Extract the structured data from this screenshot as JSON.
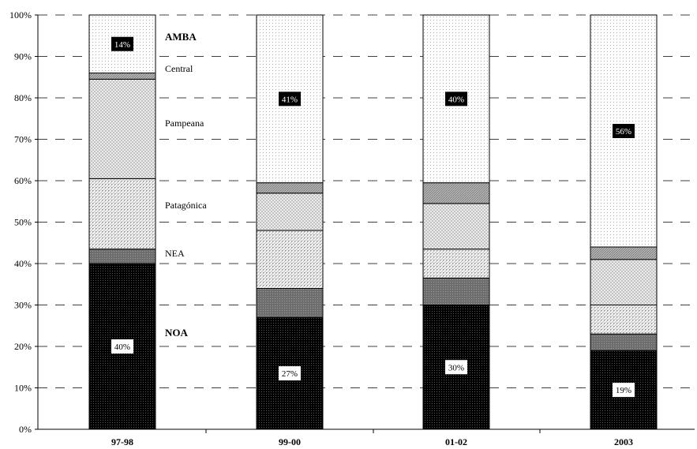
{
  "chart_data": {
    "type": "bar",
    "stacked": true,
    "percent": true,
    "categories": [
      "97-98",
      "99-00",
      "01-02",
      "2003"
    ],
    "ylim": [
      0,
      100
    ],
    "yticks": [
      "0%",
      "10%",
      "20%",
      "30%",
      "40%",
      "50%",
      "60%",
      "70%",
      "80%",
      "90%",
      "100%"
    ],
    "grid": "dashed horizontal",
    "series": [
      {
        "name": "NOA",
        "values": [
          40,
          27,
          30,
          19
        ],
        "pattern": "dense-black",
        "color": "#000000"
      },
      {
        "name": "NEA",
        "values": [
          3.5,
          7,
          6.5,
          4
        ],
        "pattern": "gray",
        "color": "#7a7a7a"
      },
      {
        "name": "Patagónica",
        "values": [
          17,
          14,
          7,
          7
        ],
        "pattern": "light-dots",
        "color": "#d8d8d8"
      },
      {
        "name": "Pampeana",
        "values": [
          24,
          9,
          11,
          11
        ],
        "pattern": "hatched",
        "color": "#c8c8c8"
      },
      {
        "name": "Central",
        "values": [
          1.5,
          2.5,
          5,
          3
        ],
        "pattern": "medium-gray",
        "color": "#a0a0a0"
      },
      {
        "name": "AMBA",
        "values": [
          14,
          40.5,
          40.5,
          56
        ],
        "pattern": "sparse-dots",
        "color": "#f4f4f4"
      }
    ],
    "data_labels": [
      {
        "series": "NOA",
        "labels": [
          "40%",
          "27%",
          "30%",
          "19%"
        ]
      },
      {
        "series": "AMBA",
        "labels": [
          "14%",
          "41%",
          "40%",
          "56%"
        ]
      }
    ]
  },
  "legend": [
    {
      "label": "AMBA",
      "bold": true
    },
    {
      "label": "Central",
      "bold": false
    },
    {
      "label": "Pampeana",
      "bold": false
    },
    {
      "label": "Patagónica",
      "bold": false
    },
    {
      "label": "NEA",
      "bold": false
    },
    {
      "label": "NOA",
      "bold": true
    }
  ]
}
